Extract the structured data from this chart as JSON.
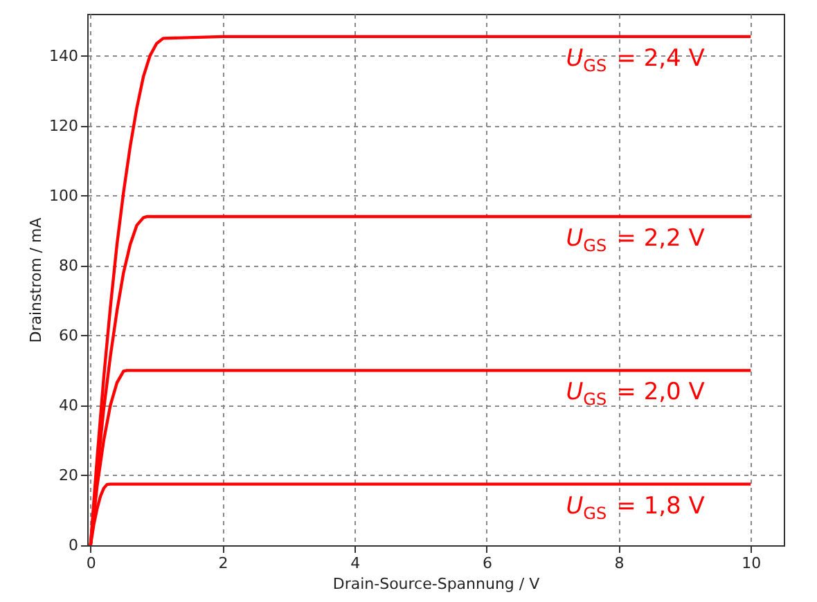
{
  "chart_data": {
    "type": "line",
    "xlabel": "Drain-Source-Spannung / V",
    "ylabel": "Drainstrom / mA",
    "xlim": [
      -0.05,
      10.5
    ],
    "ylim": [
      0,
      152
    ],
    "xticks": [
      0,
      2,
      4,
      6,
      8,
      10
    ],
    "yticks": [
      0,
      20,
      40,
      60,
      80,
      100,
      120,
      140
    ],
    "grid": true,
    "line_style": "solid",
    "marker": "none",
    "series": [
      {
        "name": "U$_{GS}$ = 1,8 V",
        "color": "#ff0000",
        "x": [
          0,
          0.05,
          0.1,
          0.15,
          0.2,
          0.25,
          0.3,
          10
        ],
        "values": [
          0,
          6,
          10.5,
          14,
          16.3,
          17.4,
          17.5,
          17.5
        ]
      },
      {
        "name": "U$_{GS}$ = 2,0 V",
        "color": "#ff0000",
        "x": [
          0,
          0.1,
          0.2,
          0.3,
          0.4,
          0.5,
          0.55,
          10
        ],
        "values": [
          0,
          17,
          30,
          40,
          46.5,
          49.8,
          50,
          50
        ]
      },
      {
        "name": "U$_{GS}$ = 2,2 V",
        "color": "#ff0000",
        "x": [
          0,
          0.1,
          0.2,
          0.3,
          0.4,
          0.5,
          0.6,
          0.7,
          0.8,
          0.85,
          10
        ],
        "values": [
          0,
          21,
          39,
          54,
          67,
          78,
          86,
          91.5,
          93.7,
          94,
          94
        ]
      },
      {
        "name": "U$_{GS}$ = 2,4 V",
        "color": "#ff0000",
        "x": [
          0,
          0.1,
          0.2,
          0.3,
          0.4,
          0.5,
          0.6,
          0.7,
          0.8,
          0.9,
          1.0,
          1.1,
          2,
          10
        ],
        "values": [
          0,
          25,
          48,
          68,
          86,
          101,
          114,
          125,
          134,
          140,
          143.5,
          145,
          145.5,
          145.5
        ]
      }
    ]
  }
}
